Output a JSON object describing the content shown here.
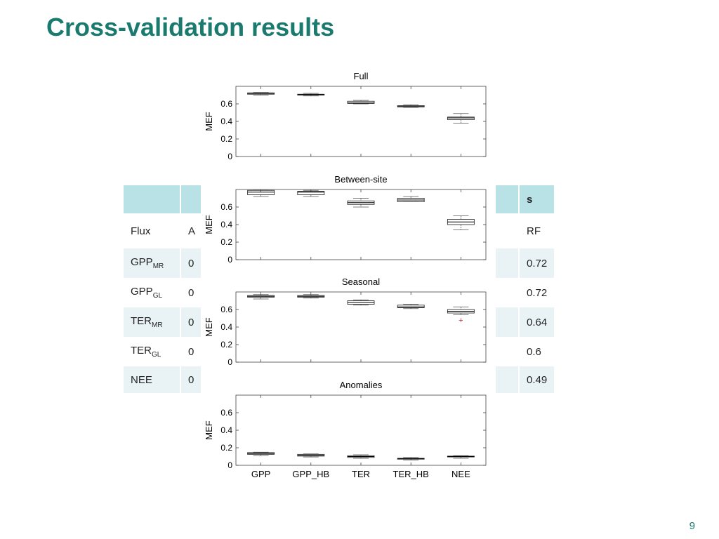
{
  "slide": {
    "title": "Cross-validation results",
    "page_number": "9"
  },
  "table": {
    "header_last": "s",
    "rows": [
      {
        "flux": "Flux",
        "sub": "",
        "col2": "A",
        "last": "RF"
      },
      {
        "flux": "GPP",
        "sub": "MR",
        "col2": "0",
        "last": "0.72"
      },
      {
        "flux": "GPP",
        "sub": "GL",
        "col2": "0",
        "last": "0.72"
      },
      {
        "flux": "TER",
        "sub": "MR",
        "col2": "0",
        "last": "0.64"
      },
      {
        "flux": "TER",
        "sub": "GL",
        "col2": "0",
        "last": "0.6"
      },
      {
        "flux": "NEE",
        "sub": "",
        "col2": "0",
        "last": "0.49"
      }
    ]
  },
  "chart_data": [
    {
      "type": "box",
      "title": "Full",
      "ylabel": "MEF",
      "ylim": [
        0,
        0.8
      ],
      "yticks": [
        "0",
        "0.2",
        "0.4",
        "0.6"
      ],
      "categories": [
        "GPP",
        "GPP_HB",
        "TER",
        "TER_HB",
        "NEE"
      ],
      "boxes": [
        {
          "min": 0.7,
          "q1": 0.71,
          "median": 0.72,
          "q3": 0.725,
          "max": 0.73
        },
        {
          "min": 0.69,
          "q1": 0.7,
          "median": 0.705,
          "q3": 0.71,
          "max": 0.72
        },
        {
          "min": 0.6,
          "q1": 0.605,
          "median": 0.61,
          "q3": 0.63,
          "max": 0.64
        },
        {
          "min": 0.56,
          "q1": 0.565,
          "median": 0.57,
          "q3": 0.58,
          "max": 0.59
        },
        {
          "min": 0.38,
          "q1": 0.42,
          "median": 0.44,
          "q3": 0.45,
          "max": 0.49
        }
      ],
      "outliers": []
    },
    {
      "type": "box",
      "title": "Between-site",
      "ylabel": "MEF",
      "ylim": [
        0,
        0.8
      ],
      "yticks": [
        "0",
        "0.2",
        "0.4",
        "0.6"
      ],
      "categories": [
        "GPP",
        "GPP_HB",
        "TER",
        "TER_HB",
        "NEE"
      ],
      "boxes": [
        {
          "min": 0.72,
          "q1": 0.74,
          "median": 0.77,
          "q3": 0.79,
          "max": 0.8
        },
        {
          "min": 0.72,
          "q1": 0.74,
          "median": 0.77,
          "q3": 0.78,
          "max": 0.79
        },
        {
          "min": 0.6,
          "q1": 0.63,
          "median": 0.65,
          "q3": 0.67,
          "max": 0.7
        },
        {
          "min": 0.66,
          "q1": 0.66,
          "median": 0.68,
          "q3": 0.7,
          "max": 0.72
        },
        {
          "min": 0.34,
          "q1": 0.4,
          "median": 0.43,
          "q3": 0.46,
          "max": 0.5
        }
      ],
      "outliers": []
    },
    {
      "type": "box",
      "title": "Seasonal",
      "ylabel": "MEF",
      "ylim": [
        0,
        0.8
      ],
      "yticks": [
        "0",
        "0.2",
        "0.4",
        "0.6"
      ],
      "categories": [
        "GPP",
        "GPP_HB",
        "TER",
        "TER_HB",
        "NEE"
      ],
      "boxes": [
        {
          "min": 0.72,
          "q1": 0.74,
          "median": 0.75,
          "q3": 0.76,
          "max": 0.77
        },
        {
          "min": 0.73,
          "q1": 0.74,
          "median": 0.75,
          "q3": 0.76,
          "max": 0.77
        },
        {
          "min": 0.65,
          "q1": 0.66,
          "median": 0.68,
          "q3": 0.7,
          "max": 0.71
        },
        {
          "min": 0.61,
          "q1": 0.62,
          "median": 0.63,
          "q3": 0.65,
          "max": 0.66
        },
        {
          "min": 0.54,
          "q1": 0.56,
          "median": 0.58,
          "q3": 0.6,
          "max": 0.63
        }
      ],
      "outliers": [
        {
          "category": "NEE",
          "value": 0.48
        }
      ]
    },
    {
      "type": "box",
      "title": "Anomalies",
      "ylabel": "MEF",
      "ylim": [
        0,
        0.8
      ],
      "yticks": [
        "0",
        "0.2",
        "0.4",
        "0.6"
      ],
      "categories": [
        "GPP",
        "GPP_HB",
        "TER",
        "TER_HB",
        "NEE"
      ],
      "boxes": [
        {
          "min": 0.11,
          "q1": 0.125,
          "median": 0.135,
          "q3": 0.145,
          "max": 0.15
        },
        {
          "min": 0.095,
          "q1": 0.105,
          "median": 0.115,
          "q3": 0.125,
          "max": 0.13
        },
        {
          "min": 0.08,
          "q1": 0.09,
          "median": 0.1,
          "q3": 0.11,
          "max": 0.12
        },
        {
          "min": 0.06,
          "q1": 0.07,
          "median": 0.075,
          "q3": 0.08,
          "max": 0.09
        },
        {
          "min": 0.08,
          "q1": 0.095,
          "median": 0.1,
          "q3": 0.105,
          "max": 0.11
        }
      ],
      "outliers": []
    }
  ]
}
